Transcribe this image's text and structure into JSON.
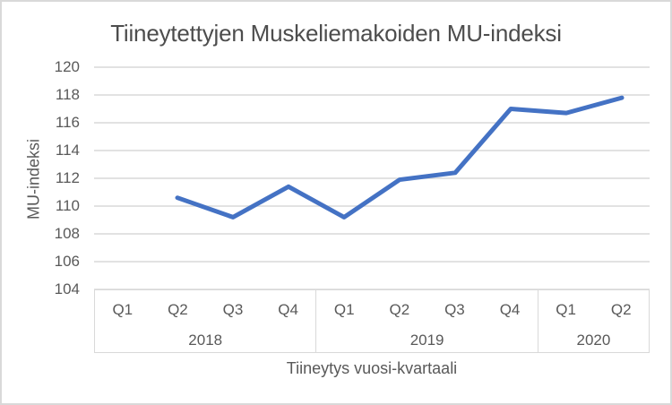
{
  "chart_data": {
    "type": "line",
    "title": "Tiineytettyjen Muskeliemakoiden MU-indeksi",
    "xlabel": "Tiineytys vuosi-kvartaali",
    "ylabel": "MU-indeksi",
    "ylim": [
      104,
      120
    ],
    "yticks": [
      120,
      118,
      116,
      114,
      112,
      110,
      108,
      106,
      104
    ],
    "grid": true,
    "legend": "none",
    "categories": [
      "Q1",
      "Q2",
      "Q3",
      "Q4",
      "Q1",
      "Q2",
      "Q3",
      "Q4",
      "Q1",
      "Q2"
    ],
    "year_groups": [
      {
        "year": "2018",
        "quarters": [
          "Q1",
          "Q2",
          "Q3",
          "Q4"
        ]
      },
      {
        "year": "2019",
        "quarters": [
          "Q1",
          "Q2",
          "Q3",
          "Q4"
        ]
      },
      {
        "year": "2020",
        "quarters": [
          "Q1",
          "Q2"
        ]
      }
    ],
    "series": [
      {
        "color": "#4472c4",
        "values": [
          null,
          110.6,
          109.2,
          111.4,
          109.2,
          111.9,
          112.4,
          117.0,
          116.7,
          117.8
        ]
      }
    ]
  },
  "colors": {
    "line": "#4472c4",
    "gridline": "#d9d9d9",
    "axis_border": "#d9d9d9",
    "text": "#595959",
    "frame_border": "#d9d9d9",
    "background": "#ffffff"
  }
}
